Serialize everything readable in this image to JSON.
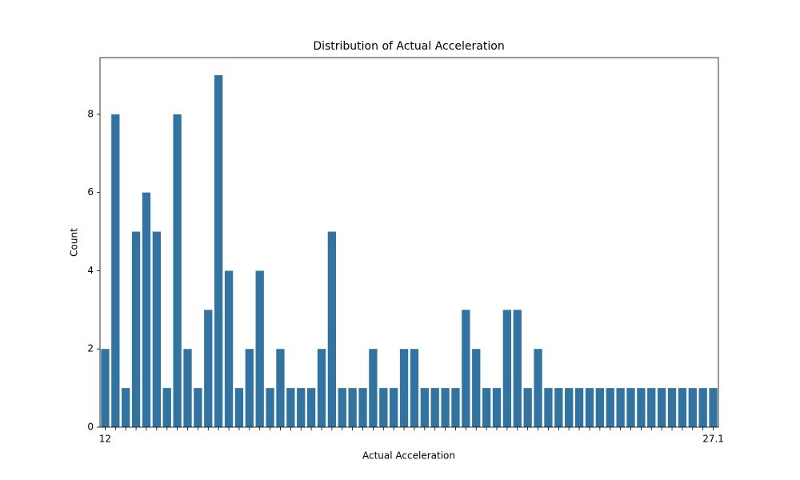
{
  "chart_data": {
    "type": "bar",
    "title": "Distribution of Actual Acceleration",
    "x_label": "Actual Acceleration",
    "y_label": "Count",
    "categories": [
      "12",
      null,
      null,
      null,
      null,
      null,
      null,
      null,
      null,
      null,
      null,
      null,
      null,
      null,
      null,
      null,
      null,
      null,
      null,
      null,
      null,
      null,
      null,
      null,
      null,
      null,
      null,
      null,
      null,
      null,
      null,
      null,
      null,
      null,
      null,
      null,
      null,
      null,
      null,
      null,
      null,
      null,
      null,
      null,
      null,
      null,
      null,
      null,
      null,
      null,
      null,
      null,
      null,
      null,
      null,
      null,
      null,
      null,
      null,
      "27.1"
    ],
    "values": [
      2,
      8,
      1,
      5,
      6,
      5,
      1,
      8,
      2,
      1,
      3,
      9,
      4,
      1,
      2,
      4,
      1,
      2,
      1,
      1,
      1,
      2,
      5,
      1,
      1,
      1,
      2,
      1,
      1,
      2,
      2,
      1,
      1,
      1,
      1,
      3,
      2,
      1,
      1,
      3,
      3,
      1,
      2,
      1,
      1,
      1,
      1,
      1,
      1,
      1,
      1,
      1,
      1,
      1,
      1,
      1,
      1,
      1,
      1,
      1
    ],
    "color": "#3274a1",
    "ylim": [
      0,
      9.45
    ],
    "yticks": [
      0,
      2,
      4,
      6,
      8
    ]
  }
}
